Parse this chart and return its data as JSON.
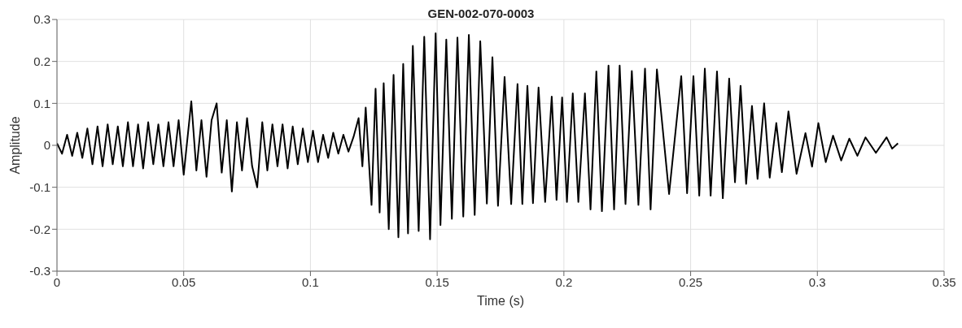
{
  "chart_data": {
    "type": "line",
    "title": "GEN-002-070-0003",
    "xlabel": "Time (s)",
    "ylabel": "Amplitude",
    "x": [
      0.0,
      0.002,
      0.004,
      0.006,
      0.008,
      0.01,
      0.012,
      0.014,
      0.016,
      0.018,
      0.02,
      0.022,
      0.024,
      0.026,
      0.028,
      0.03,
      0.032,
      0.034,
      0.036,
      0.038,
      0.04,
      0.042,
      0.044,
      0.046,
      0.048,
      0.05,
      0.053,
      0.055,
      0.057,
      0.059,
      0.061,
      0.063,
      0.065,
      0.067,
      0.069,
      0.071,
      0.073,
      0.075,
      0.077,
      0.079,
      0.081,
      0.083,
      0.085,
      0.087,
      0.089,
      0.091,
      0.093,
      0.095,
      0.097,
      0.099,
      0.101,
      0.103,
      0.105,
      0.107,
      0.109,
      0.111,
      0.113,
      0.115,
      0.117,
      0.119,
      0.1205,
      0.1218,
      0.1241,
      0.1257,
      0.1273,
      0.1289,
      0.1309,
      0.1328,
      0.1347,
      0.1366,
      0.1385,
      0.1404,
      0.1427,
      0.1449,
      0.1472,
      0.1494,
      0.1513,
      0.1536,
      0.1558,
      0.158,
      0.1603,
      0.1625,
      0.1648,
      0.167,
      0.1696,
      0.1718,
      0.174,
      0.1766,
      0.1792,
      0.1817,
      0.1836,
      0.1856,
      0.1878,
      0.19,
      0.1926,
      0.1952,
      0.1971,
      0.1993,
      0.2012,
      0.2035,
      0.2057,
      0.2083,
      0.2105,
      0.2128,
      0.215,
      0.2176,
      0.2198,
      0.222,
      0.2243,
      0.2268,
      0.2294,
      0.232,
      0.2342,
      0.2367,
      0.2415,
      0.2463,
      0.2486,
      0.2511,
      0.2534,
      0.2556,
      0.2579,
      0.2604,
      0.2627,
      0.2652,
      0.2675,
      0.2697,
      0.2719,
      0.2742,
      0.2764,
      0.279,
      0.2812,
      0.2838,
      0.286,
      0.2886,
      0.2918,
      0.2953,
      0.2979,
      0.3004,
      0.3033,
      0.3062,
      0.3094,
      0.3126,
      0.3158,
      0.319,
      0.3231,
      0.3273,
      0.3295,
      0.3318
    ],
    "values": [
      0.005,
      -0.02,
      0.025,
      -0.025,
      0.03,
      -0.03,
      0.04,
      -0.045,
      0.045,
      -0.05,
      0.05,
      -0.045,
      0.045,
      -0.05,
      0.055,
      -0.05,
      0.05,
      -0.055,
      0.055,
      -0.045,
      0.05,
      -0.05,
      0.055,
      -0.05,
      0.06,
      -0.07,
      0.105,
      -0.06,
      0.06,
      -0.075,
      0.06,
      0.1,
      -0.065,
      0.06,
      -0.11,
      0.055,
      -0.06,
      0.065,
      -0.05,
      -0.1,
      0.055,
      -0.06,
      0.05,
      -0.05,
      0.05,
      -0.055,
      0.045,
      -0.045,
      0.04,
      -0.04,
      0.035,
      -0.04,
      0.025,
      -0.03,
      0.03,
      -0.02,
      0.025,
      -0.015,
      0.02,
      0.065,
      -0.05,
      0.09,
      -0.142,
      0.135,
      -0.16,
      0.148,
      -0.2,
      0.168,
      -0.219,
      0.194,
      -0.21,
      0.237,
      -0.204,
      0.259,
      -0.224,
      0.267,
      -0.19,
      0.252,
      -0.175,
      0.257,
      -0.17,
      0.263,
      -0.166,
      0.248,
      -0.139,
      0.21,
      -0.144,
      0.163,
      -0.14,
      0.146,
      -0.14,
      0.142,
      -0.138,
      0.138,
      -0.135,
      0.116,
      -0.13,
      0.114,
      -0.135,
      0.124,
      -0.135,
      0.124,
      -0.153,
      0.176,
      -0.157,
      0.19,
      -0.153,
      0.19,
      -0.14,
      0.177,
      -0.142,
      0.183,
      -0.153,
      0.181,
      -0.116,
      0.165,
      -0.114,
      0.165,
      -0.12,
      0.183,
      -0.12,
      0.176,
      -0.126,
      0.159,
      -0.088,
      0.142,
      -0.092,
      0.094,
      -0.08,
      0.1,
      -0.077,
      0.053,
      -0.064,
      0.081,
      -0.068,
      0.029,
      -0.051,
      0.053,
      -0.04,
      0.023,
      -0.036,
      0.016,
      -0.025,
      0.019,
      -0.018,
      0.019,
      -0.008,
      0.005
    ],
    "color": "#000000",
    "xlim": [
      0,
      0.35
    ],
    "ylim": [
      -0.3,
      0.3
    ],
    "xticks": [
      0,
      0.05,
      0.1,
      0.15,
      0.2,
      0.25,
      0.3,
      0.35
    ],
    "yticks": [
      -0.3,
      -0.2,
      -0.1,
      0,
      0.1,
      0.2,
      0.3
    ],
    "grid": true
  }
}
